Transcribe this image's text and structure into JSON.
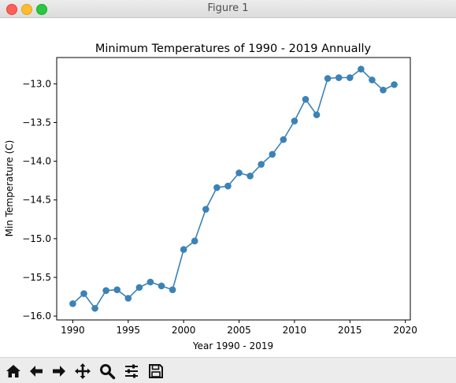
{
  "window": {
    "title": "Figure 1"
  },
  "toolbar": {
    "buttons": [
      "home-icon",
      "back-arrow-icon",
      "forward-arrow-icon",
      "pan-move-icon",
      "zoom-magnifier-icon",
      "configure-subplots-icon",
      "save-floppy-icon"
    ]
  },
  "chart_data": {
    "type": "line",
    "title": "Minimum Temperatures of 1990 - 2019 Annually",
    "xlabel": "Year 1990 - 2019",
    "ylabel": "Min Temperature (C)",
    "x": [
      1990,
      1991,
      1992,
      1993,
      1994,
      1995,
      1996,
      1997,
      1998,
      1999,
      2000,
      2001,
      2002,
      2003,
      2004,
      2005,
      2006,
      2007,
      2008,
      2009,
      2010,
      2011,
      2012,
      2013,
      2014,
      2015,
      2016,
      2017,
      2018,
      2019
    ],
    "series": [
      {
        "values": [
          -15.84,
          -15.71,
          -15.9,
          -15.67,
          -15.66,
          -15.77,
          -15.63,
          -15.56,
          -15.61,
          -15.66,
          -15.14,
          -15.03,
          -14.62,
          -14.34,
          -14.32,
          -14.15,
          -14.19,
          -14.04,
          -13.91,
          -13.72,
          -13.48,
          -13.2,
          -13.4,
          -12.93,
          -12.92,
          -12.92,
          -12.81,
          -12.95,
          -13.08,
          -13.01
        ],
        "color": "#3b82b6"
      }
    ],
    "xlim": [
      1988.55,
      2020.45
    ],
    "ylim": [
      -16.05,
      -12.66
    ],
    "xticks": [
      1990,
      1995,
      2000,
      2005,
      2010,
      2015,
      2020
    ],
    "xtick_labels": [
      "1990",
      "1995",
      "2000",
      "2005",
      "2010",
      "2015",
      "2020"
    ],
    "yticks": [
      -16.0,
      -15.5,
      -15.0,
      -14.5,
      -14.0,
      -13.5,
      -13.0
    ],
    "ytick_labels": [
      "−16.0",
      "−15.5",
      "−15.0",
      "−14.5",
      "−14.0",
      "−13.5",
      "−13.0"
    ],
    "grid": false,
    "legend": false
  }
}
